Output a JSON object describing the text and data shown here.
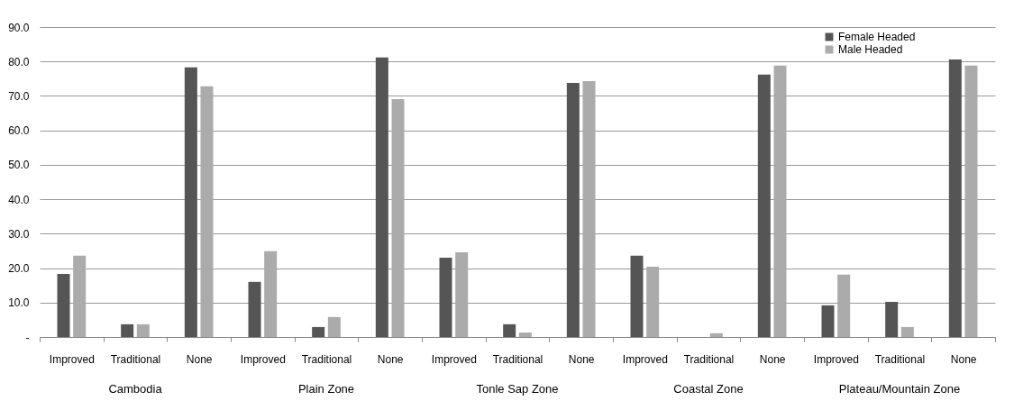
{
  "chart_data": {
    "type": "bar",
    "categories": [
      "Improved",
      "Traditional",
      "None",
      "Improved",
      "Traditional",
      "None",
      "Improved",
      "Traditional",
      "None",
      "Improved",
      "Traditional",
      "None",
      "Improved",
      "Traditional",
      "None"
    ],
    "series": [
      {
        "name": "Female Headed",
        "color": "#555555",
        "values": [
          18.3,
          3.7,
          78.3,
          16.0,
          2.9,
          81.2,
          23.0,
          3.7,
          73.8,
          23.6,
          0,
          76.2,
          9.2,
          10.2,
          80.6
        ]
      },
      {
        "name": "Male Headed",
        "color": "#ababab",
        "values": [
          23.6,
          3.7,
          72.8,
          24.9,
          5.8,
          69.1,
          24.6,
          1.3,
          74.3,
          20.4,
          1.1,
          78.8,
          18.1,
          2.9,
          78.8
        ]
      }
    ],
    "annotations": [
      "Cambodia",
      "Plain Zone",
      "Tonle Sap Zone",
      "Coastal Zone",
      "Plateau/Mountain Zone"
    ],
    "ylim": [
      0,
      90
    ],
    "yticks": [
      {
        "value": 0,
        "label": "-"
      },
      {
        "value": 10,
        "label": "10.0"
      },
      {
        "value": 20,
        "label": "20.0"
      },
      {
        "value": 30,
        "label": "30.0"
      },
      {
        "value": 40,
        "label": "40.0"
      },
      {
        "value": 50,
        "label": "50.0"
      },
      {
        "value": 60,
        "label": "60.0"
      },
      {
        "value": 70,
        "label": "70.0"
      },
      {
        "value": 80,
        "label": "80.0"
      },
      {
        "value": 90,
        "label": "90.0"
      }
    ],
    "grid": "y",
    "legend": "top right"
  }
}
